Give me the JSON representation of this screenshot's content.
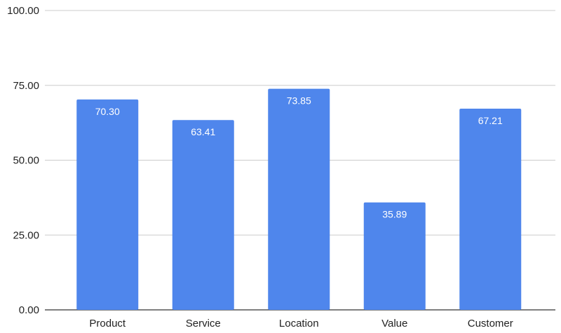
{
  "chart_data": {
    "type": "bar",
    "title": "",
    "xlabel": "",
    "ylabel": "",
    "categories": [
      "Product",
      "Service",
      "Location",
      "Value",
      "Customer"
    ],
    "values": [
      70.3,
      63.41,
      73.85,
      35.89,
      67.21
    ],
    "value_labels": [
      "70.30",
      "63.41",
      "73.85",
      "35.89",
      "67.21"
    ],
    "ylim": [
      0,
      100
    ],
    "yticks": [
      0,
      25,
      50,
      75,
      100
    ],
    "ytick_labels": [
      "0.00",
      "25.00",
      "50.00",
      "75.00",
      "100.00"
    ],
    "grid": true,
    "legend": "none",
    "bar_color": "#4f86ec",
    "grid_color": "#cccccc",
    "axis_color": "#333333"
  }
}
